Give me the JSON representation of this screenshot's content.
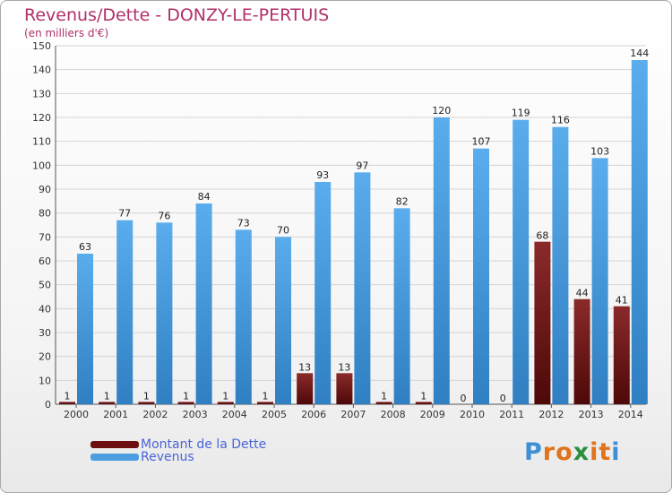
{
  "header": {
    "title": "Revenus/Dette - DONZY-LE-PERTUIS",
    "subtitle": "(en milliers d'€)"
  },
  "chart_data": {
    "type": "bar",
    "categories": [
      "2000",
      "2001",
      "2002",
      "2003",
      "2004",
      "2005",
      "2006",
      "2007",
      "2008",
      "2009",
      "2010",
      "2011",
      "2012",
      "2013",
      "2014"
    ],
    "series": [
      {
        "name": "Montant de la Dette",
        "color": "#7a1a1a",
        "values": [
          1,
          1,
          1,
          1,
          1,
          1,
          13,
          13,
          1,
          1,
          0,
          0,
          68,
          44,
          41
        ]
      },
      {
        "name": "Revenus",
        "color": "#4b9fe0",
        "values": [
          63,
          77,
          76,
          84,
          73,
          70,
          93,
          97,
          82,
          120,
          107,
          119,
          116,
          103,
          144
        ]
      }
    ],
    "yticks": [
      0,
      10,
      20,
      30,
      40,
      50,
      60,
      70,
      80,
      90,
      100,
      110,
      120,
      130,
      140,
      150
    ],
    "ylim": [
      0,
      150
    ],
    "grid": true,
    "legend_position": "bottom-left"
  },
  "legend": [
    {
      "label": "Montant de la Dette",
      "color": "#6e0f0f"
    },
    {
      "label": "Revenus",
      "color": "#4b9fe0"
    }
  ],
  "logo": {
    "letters": [
      "P",
      "r",
      "o",
      "x",
      "i",
      "t",
      "i"
    ],
    "colors": [
      "#3d8fd6",
      "#e0731c",
      "#e0731c",
      "#2a8f3e",
      "#e0731c",
      "#e0731c",
      "#3d8fd6"
    ]
  }
}
